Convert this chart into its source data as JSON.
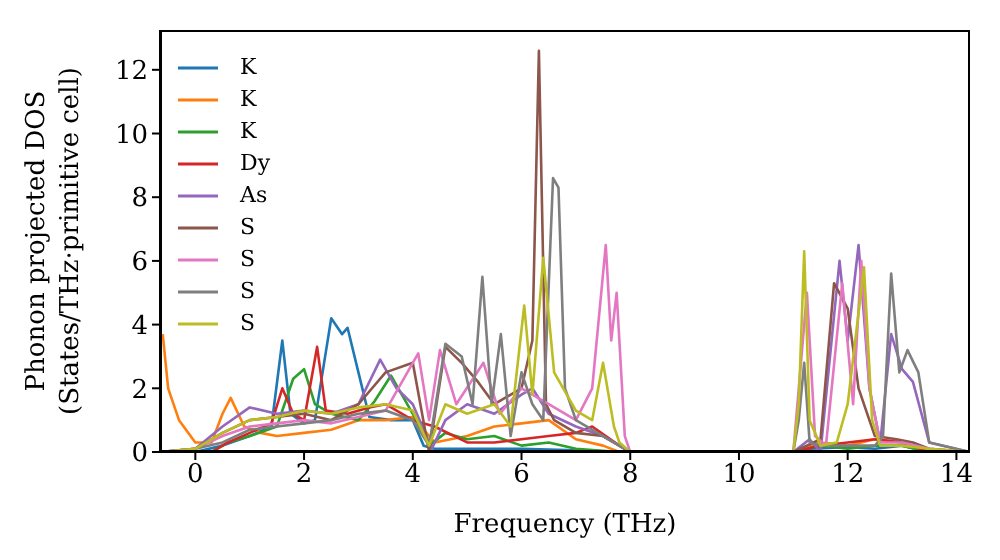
{
  "chart_data": {
    "type": "line",
    "xlabel": "Frequency (THz)",
    "ylabel": "Phonon projected DOS\n(States/THz·primitive cell)",
    "xlim": [
      -0.65,
      14.25
    ],
    "ylim": [
      0,
      13.25
    ],
    "xticks": [
      0,
      2,
      4,
      6,
      8,
      10,
      12,
      14
    ],
    "yticks": [
      0,
      2,
      4,
      6,
      8,
      10,
      12
    ],
    "grid": false,
    "legend": "top left",
    "marker": "none",
    "line_style": "solid",
    "series": [
      {
        "name": "K",
        "color": "#1f77b4",
        "x": [
          -0.65,
          0,
          0.5,
          1,
          1.4,
          1.6,
          1.75,
          2,
          2.2,
          2.5,
          2.7,
          2.8,
          3,
          3.2,
          3.6,
          4,
          4.2,
          4.4,
          5,
          6,
          7,
          7.8,
          8,
          11,
          11.3,
          12,
          12.5,
          13,
          13.5,
          14.25
        ],
        "values": [
          0,
          0,
          0.2,
          0.5,
          0.8,
          3.5,
          1.2,
          0.9,
          1.0,
          4.2,
          3.7,
          3.9,
          2.5,
          1.1,
          1.0,
          1.0,
          0.2,
          0.1,
          0.1,
          0.1,
          0.05,
          0,
          0,
          0,
          0.1,
          0.15,
          0.1,
          0.2,
          0,
          0
        ]
      },
      {
        "name": "K",
        "color": "#ff7f0e",
        "x": [
          -0.6,
          -0.5,
          -0.3,
          0,
          0.3,
          0.5,
          0.65,
          0.9,
          1.2,
          1.5,
          2,
          2.5,
          3,
          3.5,
          4,
          4.4,
          5,
          5.5,
          6,
          6.5,
          7,
          7.5,
          7.8,
          8,
          11,
          11.5,
          12,
          12.5,
          13.2
        ],
        "values": [
          3.7,
          2.0,
          1.0,
          0.3,
          0.3,
          1.2,
          1.7,
          0.8,
          0.6,
          0.5,
          0.6,
          0.7,
          1.0,
          1.0,
          1.1,
          0.3,
          0.5,
          0.8,
          0.9,
          1.0,
          0.4,
          0.2,
          0,
          0,
          0,
          0.3,
          0.2,
          0.4,
          0.3
        ]
      },
      {
        "name": "K",
        "color": "#2ca02c",
        "x": [
          -0.65,
          0.3,
          0.6,
          1.0,
          1.5,
          1.8,
          2.0,
          2.2,
          2.5,
          3.0,
          3.3,
          3.6,
          4.0,
          4.3,
          4.6,
          5,
          5.5,
          6,
          6.5,
          7,
          7.8,
          8,
          11,
          11.5,
          12,
          12.5,
          13,
          13.5,
          14.25
        ],
        "values": [
          0,
          0,
          0.3,
          0.5,
          0.8,
          2.3,
          2.6,
          1.5,
          1.2,
          1.0,
          1.6,
          2.4,
          1.2,
          0.2,
          0.6,
          0.4,
          0.5,
          0.2,
          0.3,
          0.1,
          0,
          0,
          0,
          0.2,
          0.1,
          0.2,
          0.2,
          0,
          0
        ]
      },
      {
        "name": "Dy",
        "color": "#d62728",
        "x": [
          -0.65,
          0.3,
          0.6,
          1.0,
          1.4,
          1.6,
          1.8,
          2.0,
          2.24,
          2.4,
          2.8,
          3.2,
          3.5,
          4.0,
          4.4,
          5,
          5.5,
          6,
          6.5,
          7,
          7.3,
          7.8,
          8,
          11,
          11.5,
          12,
          12.5,
          13,
          13.5,
          14.25
        ],
        "values": [
          0,
          0,
          0.3,
          0.6,
          0.9,
          2.0,
          1.2,
          1.0,
          3.3,
          1.3,
          1.2,
          1.4,
          1.5,
          1.0,
          0.8,
          0.3,
          0.3,
          0.4,
          0.5,
          0.6,
          0.8,
          0.2,
          0,
          0,
          0.2,
          0.3,
          0.4,
          0.3,
          0,
          0
        ]
      },
      {
        "name": "As",
        "color": "#9467bd",
        "x": [
          -0.65,
          0,
          0.5,
          1.0,
          1.5,
          2.0,
          2.5,
          3.0,
          3.4,
          3.7,
          4.0,
          4.35,
          4.6,
          5.0,
          5.5,
          6.0,
          6.2,
          6.5,
          7.0,
          7.5,
          7.8,
          8,
          11,
          11.3,
          11.5,
          11.85,
          12.0,
          12.2,
          12.4,
          12.6,
          12.8,
          13.0,
          13.2,
          13.5,
          14.25
        ],
        "values": [
          0,
          0.1,
          0.8,
          1.4,
          1.2,
          1.3,
          1.2,
          1.5,
          2.9,
          2.0,
          1.5,
          0.1,
          1.0,
          1.5,
          1.2,
          1.8,
          2.0,
          1.2,
          0.8,
          0.5,
          0.2,
          0,
          0,
          0.4,
          0,
          6.0,
          3.5,
          6.5,
          2.0,
          0.3,
          3.7,
          2.6,
          2.2,
          0.3,
          0
        ]
      },
      {
        "name": "S",
        "color": "#8c564b",
        "x": [
          -0.65,
          0,
          0.5,
          1.0,
          1.5,
          2.0,
          2.5,
          3.0,
          3.5,
          4.0,
          4.3,
          4.6,
          4.9,
          5.2,
          5.5,
          6.0,
          6.2,
          6.32,
          6.45,
          6.6,
          7.0,
          7.5,
          7.8,
          8,
          11,
          11.5,
          11.75,
          12.0,
          12.2,
          12.5,
          12.9,
          13.2,
          13.5,
          14.25
        ],
        "values": [
          0,
          0.1,
          0.6,
          1.0,
          1.1,
          1.2,
          1.0,
          1.5,
          2.5,
          2.8,
          0,
          3.3,
          2.8,
          2.2,
          1.5,
          2.0,
          3.5,
          12.6,
          1.5,
          1.0,
          0.6,
          0.5,
          0.2,
          0,
          0,
          0.4,
          5.3,
          4.5,
          2.0,
          0.5,
          0.4,
          0.3,
          0.1,
          0
        ]
      },
      {
        "name": "S",
        "color": "#e377c2",
        "x": [
          -0.65,
          0,
          0.5,
          1.0,
          1.5,
          2.0,
          2.5,
          3.0,
          3.5,
          4.1,
          4.3,
          4.5,
          4.8,
          5.3,
          5.6,
          6.0,
          6.5,
          7.0,
          7.3,
          7.55,
          7.65,
          7.75,
          7.9,
          8,
          11,
          11.1,
          11.25,
          11.4,
          11.6,
          11.9,
          12.1,
          12.25,
          12.4,
          12.6,
          13,
          13.5,
          14.25
        ],
        "values": [
          0,
          0.1,
          0.5,
          0.8,
          0.9,
          1.0,
          0.9,
          1.1,
          1.3,
          3.1,
          1.0,
          3.2,
          1.5,
          2.8,
          1.2,
          2.0,
          1.5,
          1.0,
          2.0,
          6.5,
          3.5,
          5.0,
          0.5,
          0,
          0,
          2.0,
          5.0,
          0.5,
          0.2,
          5.3,
          1.5,
          6.0,
          2.0,
          0.3,
          0.3,
          0.1,
          0
        ]
      },
      {
        "name": "S",
        "color": "#7f7f7f",
        "x": [
          -0.65,
          0,
          0.5,
          1.0,
          1.5,
          2.0,
          2.5,
          3.0,
          3.5,
          4.0,
          4.3,
          4.6,
          4.9,
          5.1,
          5.28,
          5.45,
          5.62,
          5.8,
          6.0,
          6.2,
          6.4,
          6.58,
          6.68,
          6.8,
          7.0,
          7.5,
          7.8,
          8,
          11,
          11.1,
          11.2,
          11.3,
          11.5,
          12.5,
          12.65,
          12.8,
          12.95,
          13.1,
          13.3,
          13.5,
          14.25
        ],
        "values": [
          0,
          0.1,
          0.3,
          0.7,
          0.8,
          0.9,
          1.0,
          1.2,
          1.3,
          1.0,
          0.2,
          3.4,
          3.0,
          1.5,
          5.5,
          1.5,
          3.7,
          0.5,
          2.5,
          1.5,
          1.0,
          8.6,
          8.3,
          2.0,
          1.0,
          0.5,
          0.2,
          0,
          0,
          1.0,
          2.8,
          0.3,
          0.2,
          0.2,
          0.5,
          5.6,
          2.5,
          3.2,
          2.5,
          0.3,
          0
        ]
      },
      {
        "name": "S",
        "color": "#bcbd22",
        "x": [
          -0.65,
          0,
          0.5,
          1.0,
          1.5,
          2.0,
          2.5,
          3.0,
          3.5,
          4.0,
          4.3,
          4.6,
          5.0,
          5.5,
          5.8,
          6.05,
          6.2,
          6.4,
          6.6,
          7.0,
          7.3,
          7.5,
          7.7,
          7.8,
          8,
          11,
          11.1,
          11.2,
          11.3,
          11.5,
          11.8,
          12.0,
          12.3,
          12.45,
          12.6,
          13,
          13.5,
          14.25
        ],
        "values": [
          0,
          0.1,
          0.6,
          1.0,
          1.1,
          1.3,
          1.2,
          1.4,
          1.5,
          1.3,
          0.2,
          1.5,
          1.2,
          1.5,
          0.8,
          4.6,
          1.8,
          6.1,
          2.5,
          1.3,
          1.0,
          2.8,
          0.8,
          0.3,
          0,
          0,
          1.5,
          6.3,
          1.0,
          0.2,
          0.3,
          1.5,
          5.8,
          1.0,
          0.2,
          0.2,
          0.1,
          0
        ]
      }
    ]
  }
}
